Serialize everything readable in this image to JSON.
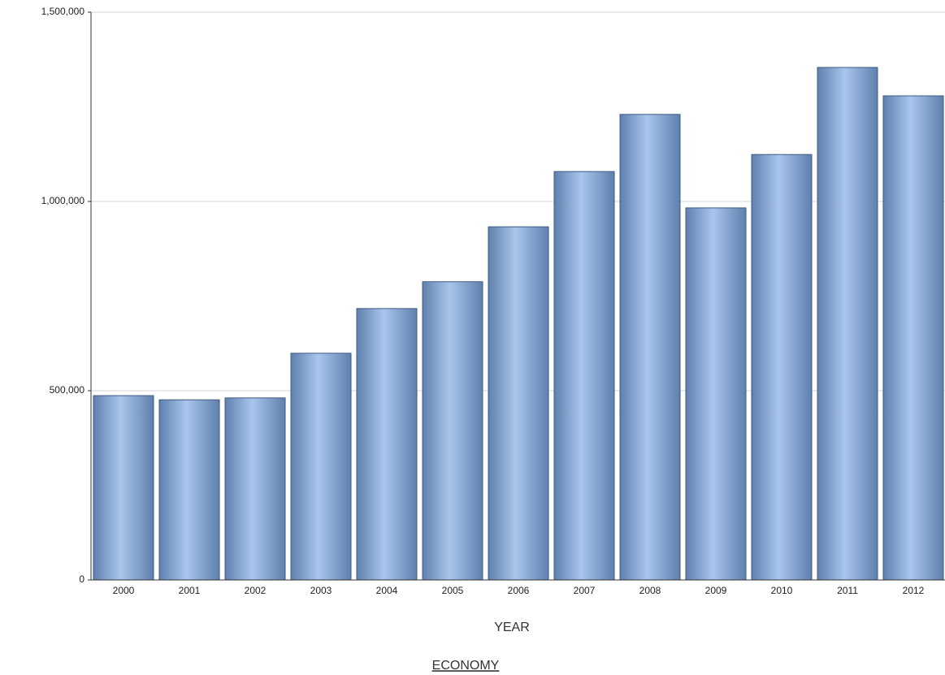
{
  "chart_data": {
    "type": "bar",
    "x_label": "YEAR",
    "footer_link": "ECONOMY",
    "categories": [
      "2000",
      "2001",
      "2002",
      "2003",
      "2004",
      "2005",
      "2006",
      "2007",
      "2008",
      "2009",
      "2010",
      "2011",
      "2012"
    ],
    "values": [
      487000,
      476000,
      481000,
      599000,
      717000,
      788000,
      933000,
      1079000,
      1230000,
      983000,
      1124000,
      1354000,
      1279000
    ],
    "color": "#5f80ad",
    "ylim": [
      0,
      1500000
    ],
    "yticks": [
      0,
      {
        "value": 500000,
        "label": "500,000"
      },
      {
        "value": 1000000,
        "label": "1,000,000"
      },
      {
        "value": 1500000,
        "label": "1,500,000"
      }
    ],
    "grid": true
  }
}
